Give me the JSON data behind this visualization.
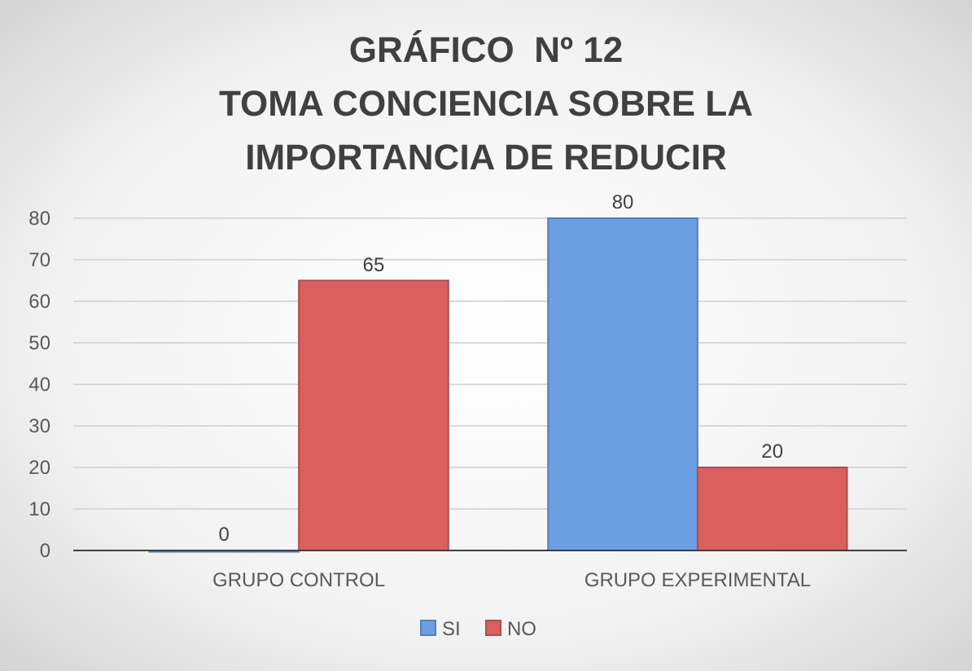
{
  "chart_data": {
    "type": "bar",
    "title": "GRÁFICO  Nº 12\nTOMA CONCIENCIA SOBRE LA\nIMPORTANCIA DE REDUCIR",
    "categories": [
      "GRUPO CONTROL",
      "GRUPO EXPERIMENTAL"
    ],
    "series": [
      {
        "name": "SI",
        "color": "#6a9fe3",
        "values": [
          0,
          80
        ]
      },
      {
        "name": "NO",
        "color": "#d9605f",
        "values": [
          65,
          20
        ]
      }
    ],
    "ylim": [
      0,
      80
    ],
    "yticks": [
      0,
      10,
      20,
      30,
      40,
      50,
      60,
      70,
      80
    ],
    "grid": "y",
    "legend": "bottom",
    "data_labels": true
  }
}
